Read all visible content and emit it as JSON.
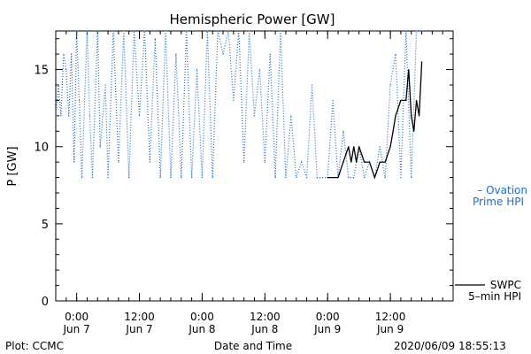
{
  "footer": {
    "plot_credit": "Plot: CCMC",
    "timestamp": "2020/06/09 18:55:13"
  },
  "colors": {
    "ovation": "#1e6fd0",
    "swpc": "#000000",
    "axes": "#000000",
    "background": "#ffffff"
  },
  "chart_data": {
    "type": "line",
    "title": "Hemispheric Power [GW]",
    "xlabel": "Date and Time",
    "ylabel": "P [GW]",
    "ylim": [
      0,
      17.5
    ],
    "xlim": [
      "2020-06-06 20:00",
      "2020-06-10 00:00"
    ],
    "yticks": [
      0,
      5,
      10,
      15
    ],
    "xticks": [
      {
        "t": "2020-06-07 00:00",
        "time": "0:00",
        "date": "Jun 7"
      },
      {
        "t": "2020-06-07 12:00",
        "time": "12:00",
        "date": "Jun 7"
      },
      {
        "t": "2020-06-08 00:00",
        "time": "0:00",
        "date": "Jun 8"
      },
      {
        "t": "2020-06-08 12:00",
        "time": "12:00",
        "date": "Jun 8"
      },
      {
        "t": "2020-06-09 00:00",
        "time": "0:00",
        "date": "Jun 9"
      },
      {
        "t": "2020-06-09 12:00",
        "time": "12:00",
        "date": "Jun 9"
      }
    ],
    "grid": false,
    "legend_position": "right",
    "series": [
      {
        "name": "Ovation Prime HPI",
        "legend_lines": [
          "– Ovation",
          "Prime HPI"
        ],
        "style": "dotted",
        "color": "#1e6fd0",
        "x": [
          "2020-06-06 20:00",
          "2020-06-06 20:30",
          "2020-06-06 21:00",
          "2020-06-06 21:30",
          "2020-06-06 22:00",
          "2020-06-06 22:30",
          "2020-06-06 23:00",
          "2020-06-06 23:30",
          "2020-06-07 00:00",
          "2020-06-07 00:30",
          "2020-06-07 01:00",
          "2020-06-07 02:00",
          "2020-06-07 02:30",
          "2020-06-07 03:00",
          "2020-06-07 04:00",
          "2020-06-07 04:30",
          "2020-06-07 05:30",
          "2020-06-07 06:00",
          "2020-06-07 07:00",
          "2020-06-07 08:00",
          "2020-06-07 09:00",
          "2020-06-07 10:00",
          "2020-06-07 11:00",
          "2020-06-07 12:00",
          "2020-06-07 13:00",
          "2020-06-07 14:00",
          "2020-06-07 15:00",
          "2020-06-07 16:00",
          "2020-06-07 17:00",
          "2020-06-07 18:00",
          "2020-06-07 19:00",
          "2020-06-07 20:00",
          "2020-06-07 21:00",
          "2020-06-07 22:00",
          "2020-06-07 23:00",
          "2020-06-08 00:00",
          "2020-06-08 01:00",
          "2020-06-08 02:00",
          "2020-06-08 03:00",
          "2020-06-08 04:00",
          "2020-06-08 05:00",
          "2020-06-08 06:00",
          "2020-06-08 07:00",
          "2020-06-08 08:00",
          "2020-06-08 09:00",
          "2020-06-08 10:00",
          "2020-06-08 11:00",
          "2020-06-08 12:00",
          "2020-06-08 13:00",
          "2020-06-08 14:00",
          "2020-06-08 15:00",
          "2020-06-08 16:00",
          "2020-06-08 17:00",
          "2020-06-08 18:00",
          "2020-06-08 19:00",
          "2020-06-08 20:00",
          "2020-06-08 21:00",
          "2020-06-08 22:00",
          "2020-06-08 23:00",
          "2020-06-09 00:00",
          "2020-06-09 01:00",
          "2020-06-09 02:00",
          "2020-06-09 03:00",
          "2020-06-09 04:00",
          "2020-06-09 05:00",
          "2020-06-09 06:00",
          "2020-06-09 07:00",
          "2020-06-09 08:00",
          "2020-06-09 09:00",
          "2020-06-09 10:00",
          "2020-06-09 11:00",
          "2020-06-09 12:00",
          "2020-06-09 13:00",
          "2020-06-09 14:00",
          "2020-06-09 15:00",
          "2020-06-09 16:00",
          "2020-06-09 17:00",
          "2020-06-09 18:00"
        ],
        "values": [
          12.0,
          14.0,
          12.0,
          16.0,
          15.0,
          12.0,
          16.0,
          9.0,
          17.5,
          13.0,
          8.0,
          17.5,
          12.0,
          8.0,
          17.5,
          10.0,
          14.0,
          8.0,
          17.5,
          9.0,
          17.5,
          8.0,
          17.5,
          12.0,
          17.5,
          9.0,
          17.0,
          8.0,
          17.5,
          8.0,
          16.0,
          8.0,
          17.5,
          8.0,
          15.0,
          8.0,
          17.5,
          8.0,
          17.5,
          16.0,
          17.5,
          13.0,
          17.5,
          9.0,
          17.5,
          12.0,
          15.0,
          9.0,
          16.0,
          8.0,
          17.5,
          8.0,
          12.0,
          8.0,
          9.0,
          8.0,
          14.0,
          8.0,
          8.0,
          8.0,
          13.0,
          8.0,
          11.0,
          8.0,
          8.0,
          10.0,
          8.0,
          9.0,
          8.0,
          10.0,
          8.0,
          14.0,
          16.0,
          8.0,
          17.5,
          8.0,
          17.5,
          17.5
        ]
      },
      {
        "name": "SWPC 5-min HPI",
        "legend_lines": [
          "SWPC",
          "5–min HPI"
        ],
        "style": "solid",
        "color": "#000000",
        "x": [
          "2020-06-09 00:00",
          "2020-06-09 02:00",
          "2020-06-09 03:00",
          "2020-06-09 04:00",
          "2020-06-09 04:30",
          "2020-06-09 05:00",
          "2020-06-09 05:30",
          "2020-06-09 06:00",
          "2020-06-09 07:00",
          "2020-06-09 08:00",
          "2020-06-09 09:00",
          "2020-06-09 10:00",
          "2020-06-09 11:00",
          "2020-06-09 12:00",
          "2020-06-09 12:30",
          "2020-06-09 13:00",
          "2020-06-09 14:00",
          "2020-06-09 15:00",
          "2020-06-09 15:30",
          "2020-06-09 16:00",
          "2020-06-09 16:30",
          "2020-06-09 17:00",
          "2020-06-09 17:30",
          "2020-06-09 18:00"
        ],
        "values": [
          8.0,
          8.0,
          9.0,
          10.0,
          9.0,
          10.0,
          9.0,
          10.0,
          9.0,
          9.0,
          8.0,
          9.0,
          9.0,
          10.0,
          11.0,
          12.0,
          13.0,
          13.0,
          15.0,
          12.0,
          11.0,
          13.0,
          12.0,
          15.5
        ]
      }
    ]
  }
}
